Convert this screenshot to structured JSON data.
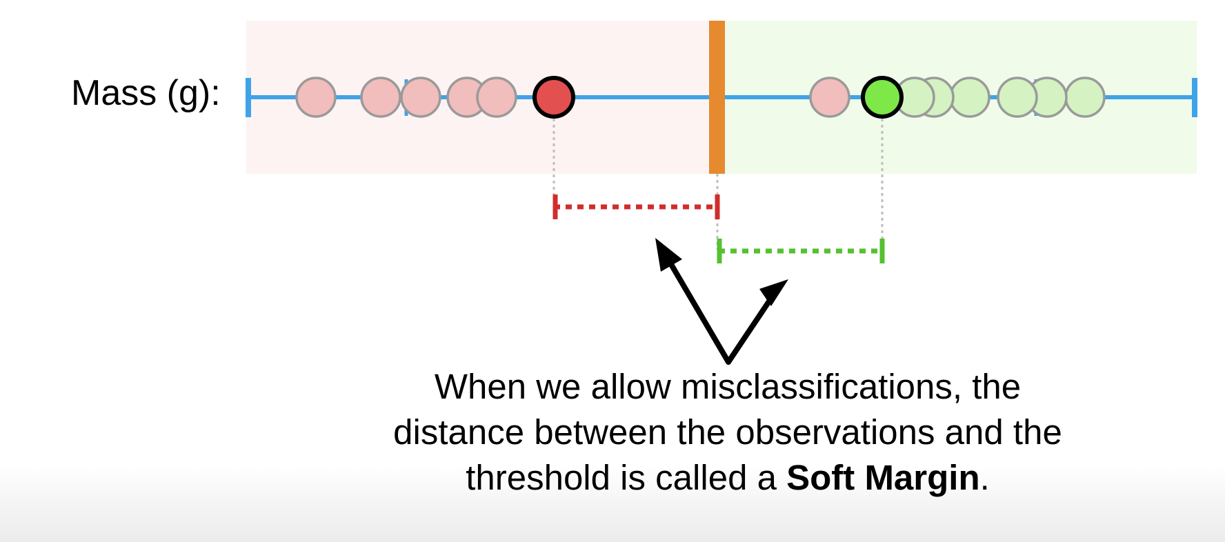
{
  "axis_label": "Mass (g):",
  "caption": {
    "line1": "When we allow misclassifications, the",
    "line2": "distance between the observations and the",
    "line3_pre": "threshold is called a ",
    "line3_bold": "Soft Margin",
    "line3_post": "."
  },
  "colors": {
    "axis": "#3fa3e9",
    "threshold": "#e58a2e",
    "red_region": "#fdf3f3",
    "green_region": "#f0fbe9",
    "red_obs": "#f2bdbd",
    "green_obs": "#d4f2c2",
    "red_support": "#e25050",
    "green_support": "#7de848",
    "red_margin": "#d12d2d",
    "green_margin": "#55c12f"
  },
  "icons": [
    "arrow-icon"
  ]
}
